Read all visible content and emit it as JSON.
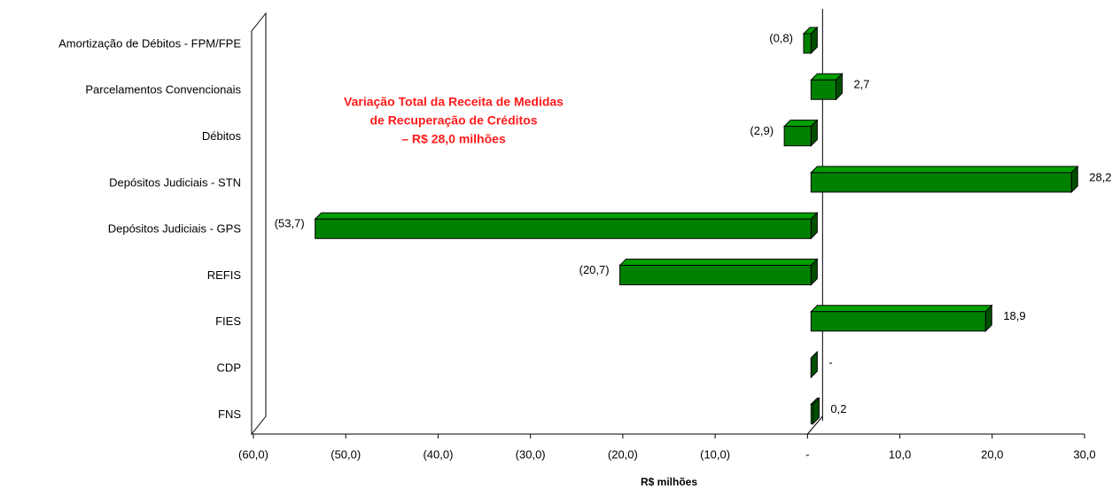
{
  "chart_data": {
    "type": "bar",
    "orientation": "horizontal",
    "categories": [
      "Amortização de Débitos - FPM/FPE",
      "Parcelamentos Convencionais",
      "Débitos",
      "Depósitos Judiciais - STN",
      "Depósitos Judiciais - GPS",
      "REFIS",
      "FIES",
      "CDP",
      "FNS"
    ],
    "values": [
      -0.8,
      2.7,
      -2.9,
      28.2,
      -53.7,
      -20.7,
      18.9,
      0,
      0.2
    ],
    "value_labels": [
      "(0,8)",
      "2,7",
      "(2,9)",
      "28,2",
      "(53,7)",
      "(20,7)",
      "18,9",
      "-",
      "0,2"
    ],
    "color": "#008000",
    "xlim": [
      -60,
      30
    ],
    "xticks": [
      {
        "value": -60,
        "label": "(60,0)"
      },
      {
        "value": -50,
        "label": "(50,0)"
      },
      {
        "value": -40,
        "label": "(40,0)"
      },
      {
        "value": -30,
        "label": "(30,0)"
      },
      {
        "value": -20,
        "label": "(20,0)"
      },
      {
        "value": -10,
        "label": "(10,0)"
      },
      {
        "value": 0,
        "label": "-"
      },
      {
        "value": 10,
        "label": "10,0"
      },
      {
        "value": 20,
        "label": "20,0"
      },
      {
        "value": 30,
        "label": "30,0"
      }
    ],
    "xlabel": "R$ milhões",
    "annotation": [
      "Variação Total da Receita de Medidas",
      "de Recuperação de Créditos",
      "– R$ 28,0 milhões"
    ]
  }
}
